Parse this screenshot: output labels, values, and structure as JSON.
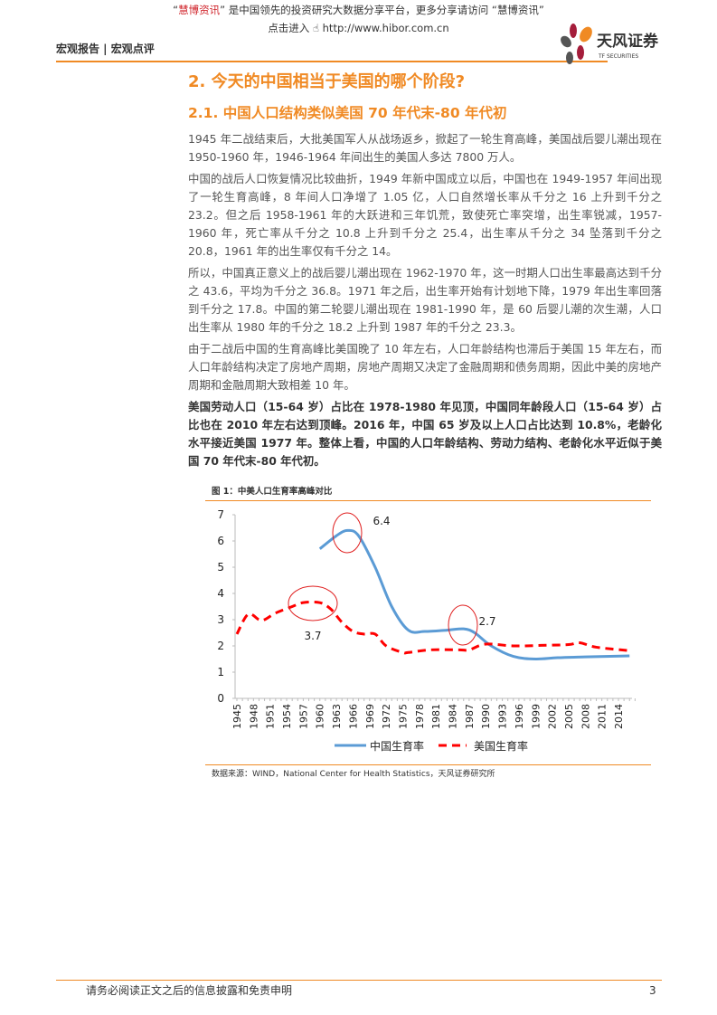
{
  "promo": {
    "line1_q1": "“",
    "line1_brand": "慧博资讯",
    "line1_rest": "” 是中国领先的投资研究大数据分享平台，更多分享请访问 “慧博资讯”",
    "line2_prefix": "点击进入",
    "line2_url": "http://www.hibor.com.cn"
  },
  "header": {
    "section": "宏观报告 | 宏观点评",
    "logo_text": "天风证券",
    "logo_sub": "TF SECURITIES"
  },
  "colors": {
    "accent": "#f08a24",
    "china": "#5b9bd5",
    "us": "#ff0000",
    "circle": "#e02020"
  },
  "heading1": "2. 今天的中国相当于美国的哪个阶段?",
  "heading2": "2.1. 中国人口结构类似美国 70 年代末-80 年代初",
  "paragraphs": [
    "1945 年二战结束后，大批美国军人从战场返乡，掀起了一轮生育高峰，美国战后婴儿潮出现在 1950-1960 年，1946-1964 年间出生的美国人多达 7800 万人。",
    "中国的战后人口恢复情况比较曲折，1949 年新中国成立以后，中国也在 1949-1957 年间出现了一轮生育高峰，8 年间人口净增了 1.05 亿，人口自然增长率从千分之 16 上升到千分之 23.2。但之后 1958-1961 年的大跃进和三年饥荒，致使死亡率突增，出生率锐减，1957-1960 年，死亡率从千分之 10.8 上升到千分之 25.4，出生率从千分之 34 坠落到千分之 20.8，1961 年的出生率仅有千分之 14。",
    "所以，中国真正意义上的战后婴儿潮出现在 1962-1970 年，这一时期人口出生率最高达到千分之 43.6，平均为千分之 36.8。1971 年之后，出生率开始有计划地下降，1979 年出生率回落到千分之 17.8。中国的第二轮婴儿潮出现在 1981-1990 年，是 60 后婴儿潮的次生潮，人口出生率从 1980 年的千分之 18.2 上升到 1987 年的千分之 23.3。",
    "由于二战后中国的生育高峰比美国晚了 10 年左右，人口年龄结构也滞后于美国 15 年左右，而人口年龄结构决定了房地产周期，房地产周期又决定了金融周期和债务周期，因此中美的房地产周期和金融周期大致相差 10 年。"
  ],
  "bold_paragraph": "美国劳动人口（15-64 岁）占比在 1978-1980 年见顶，中国同年龄段人口（15-64 岁）占比也在 2010 年左右达到顶峰。2016 年，中国 65 岁及以上人口占比达到 10.8%，老龄化水平接近美国 1977 年。整体上看，中国的人口年龄结构、劳动力结构、老龄化水平近似于美国 70 年代末-80 年代初。",
  "figure": {
    "caption": "图 1：中美人口生育率高峰对比",
    "source": "数据来源：WIND，National Center for Health Statistics，天风证券研究所"
  },
  "chart_data": {
    "type": "line",
    "title": "",
    "xlabel": "",
    "ylabel": "",
    "ylim": [
      0,
      7
    ],
    "yticks": [
      "0",
      "1",
      "2",
      "3",
      "4",
      "5",
      "6",
      "7"
    ],
    "xlim": [
      1945,
      2016
    ],
    "xticks": [
      "1945",
      "1948",
      "1951",
      "1954",
      "1957",
      "1960",
      "1963",
      "1966",
      "1969",
      "1972",
      "1975",
      "1978",
      "1981",
      "1984",
      "1987",
      "1990",
      "1993",
      "1996",
      "1999",
      "2002",
      "2005",
      "2008",
      "2011",
      "2014"
    ],
    "legend_position": "bottom",
    "grid": false,
    "series": [
      {
        "name": "中国生育率",
        "style": "solid",
        "x": [
          1960,
          1963,
          1965,
          1967,
          1970,
          1973,
          1976,
          1979,
          1983,
          1986,
          1988,
          1991,
          1995,
          1999,
          2003,
          2008,
          2016
        ],
        "values": [
          5.7,
          6.2,
          6.4,
          6.2,
          5.0,
          3.5,
          2.6,
          2.55,
          2.6,
          2.65,
          2.5,
          2.0,
          1.6,
          1.5,
          1.55,
          1.58,
          1.62
        ]
      },
      {
        "name": "美国生育率",
        "style": "dashed",
        "x": [
          1945,
          1947,
          1949,
          1950,
          1952,
          1955,
          1957,
          1960,
          1962,
          1964,
          1966,
          1968,
          1970,
          1972,
          1975,
          1976,
          1980,
          1985,
          1987,
          1990,
          1995,
          2000,
          2005,
          2007,
          2010,
          2016
        ],
        "values": [
          2.45,
          3.2,
          3.0,
          3.0,
          3.25,
          3.5,
          3.65,
          3.65,
          3.4,
          2.9,
          2.55,
          2.45,
          2.45,
          2.0,
          1.75,
          1.75,
          1.85,
          1.85,
          1.85,
          2.07,
          2.0,
          2.02,
          2.05,
          2.12,
          1.95,
          1.82
        ]
      }
    ],
    "annotations": [
      {
        "text": "6.4",
        "x": 1965
      },
      {
        "text": "3.7",
        "x": 1959
      },
      {
        "text": "2.7",
        "x": 1986
      }
    ]
  },
  "footer": {
    "disclaimer": "请务必阅读正文之后的信息披露和免责申明",
    "page": "3"
  }
}
